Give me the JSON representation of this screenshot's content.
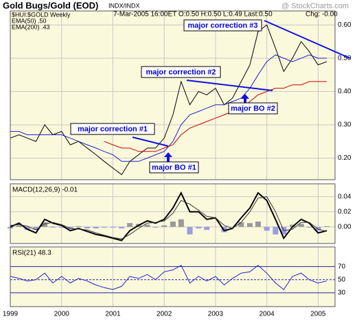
{
  "chart_data": [
    {
      "type": "line",
      "title": "Gold Bugs/Gold (EOD)",
      "exchange": "INDX/INDX",
      "quote": "7-Mar-2005 16:00ET O:0.50 H:0.50 L:0.49 Last:0.50",
      "change": "Chg: -0.00",
      "watermark": "@ StockCharts.com",
      "annotations": [
        "major correction #1",
        "major BO #1",
        "major correction #2",
        "major BO #2",
        "major correction #3"
      ],
      "x": [
        1999,
        1999.17,
        1999.33,
        1999.5,
        1999.67,
        1999.83,
        2000,
        2000.17,
        2000.33,
        2000.5,
        2000.67,
        2000.83,
        2001,
        2001.17,
        2001.33,
        2001.5,
        2001.67,
        2001.83,
        2002,
        2002.17,
        2002.33,
        2002.5,
        2002.67,
        2002.83,
        2003,
        2003.17,
        2003.33,
        2003.5,
        2003.67,
        2003.83,
        2004,
        2004.17,
        2004.33,
        2004.5,
        2004.67,
        2004.83,
        2005,
        2005.17
      ],
      "xlim": [
        1999,
        2005.33
      ],
      "ylim": [
        0.135,
        0.642
      ],
      "yticks": [
        {
          "value": 0.6,
          "label": "0.60"
        },
        {
          "value": 0.5,
          "label": "0.50"
        },
        {
          "value": 0.4,
          "label": "0.40"
        },
        {
          "value": 0.3,
          "label": "0.30"
        },
        {
          "value": 0.2,
          "label": "0.20"
        }
      ],
      "grid": true,
      "series": [
        {
          "name": "$HUI:$GOLD Weekly",
          "color": "#000000",
          "values": [
            0.26,
            0.27,
            0.26,
            0.25,
            0.3,
            0.27,
            0.28,
            0.24,
            0.25,
            0.23,
            0.21,
            0.19,
            0.17,
            0.15,
            0.19,
            0.21,
            0.23,
            0.23,
            0.26,
            0.33,
            0.43,
            0.36,
            0.4,
            0.39,
            0.41,
            0.36,
            0.38,
            0.43,
            0.48,
            0.58,
            0.6,
            0.53,
            0.46,
            0.5,
            0.55,
            0.52,
            0.48,
            0.49
          ]
        },
        {
          "name": "EMA(50) .50",
          "color": "#2020d0",
          "values": [
            0.28,
            0.28,
            0.27,
            0.27,
            0.27,
            0.27,
            0.27,
            0.26,
            0.25,
            0.24,
            0.23,
            0.22,
            0.21,
            0.19,
            0.19,
            0.19,
            0.2,
            0.21,
            0.22,
            0.25,
            0.3,
            0.33,
            0.34,
            0.35,
            0.36,
            0.36,
            0.37,
            0.38,
            0.41,
            0.45,
            0.49,
            0.51,
            0.5,
            0.49,
            0.5,
            0.51,
            0.5,
            0.5
          ]
        },
        {
          "name": "EMA(200) .43",
          "color": "#cc0000",
          "values": [
            null,
            null,
            null,
            null,
            null,
            null,
            null,
            null,
            null,
            null,
            null,
            0.25,
            0.24,
            0.23,
            0.23,
            0.22,
            0.22,
            0.22,
            0.23,
            0.24,
            0.27,
            0.29,
            0.3,
            0.31,
            0.32,
            0.33,
            0.34,
            0.35,
            0.37,
            0.39,
            0.4,
            0.41,
            0.41,
            0.42,
            0.42,
            0.43,
            0.43,
            0.43
          ]
        }
      ]
    },
    {
      "type": "line",
      "title": "MACD(12,26,9) -0.01",
      "ylim": [
        -0.022,
        0.057
      ],
      "yticks": [
        0.04,
        0.02,
        {
          "value": 0,
          "label": "0.00"
        }
      ],
      "grid": true,
      "series": [
        {
          "type": "bar",
          "color": "#999999",
          "values": [
            -0.002,
            0.002,
            -0.004,
            -0.004,
            0.006,
            -0.001,
            -0.001,
            -0.003,
            0.001,
            -0.002,
            -0.002,
            -0.001,
            -0.001,
            -0.002,
            0.005,
            0.004,
            0.003,
            -0.001,
            0.002,
            0.007,
            0.01,
            -0.01,
            -0.002,
            -0.004,
            0.0,
            -0.007,
            0.0,
            0.006,
            0.005,
            0.007,
            -0.005,
            -0.01,
            -0.01,
            0.003,
            0.004,
            -0.001,
            -0.005,
            0.001
          ]
        },
        {
          "color": "#000000",
          "values": [
            0.0,
            0.005,
            -0.003,
            -0.008,
            0.01,
            0.005,
            0.002,
            -0.005,
            -0.002,
            -0.006,
            -0.01,
            -0.012,
            -0.015,
            -0.018,
            -0.005,
            0.002,
            0.008,
            0.005,
            0.01,
            0.025,
            0.045,
            0.02,
            0.02,
            0.01,
            0.012,
            -0.005,
            -0.002,
            0.012,
            0.025,
            0.045,
            0.035,
            0.01,
            -0.015,
            0.0,
            0.01,
            0.005,
            -0.008,
            -0.005
          ]
        },
        {
          "color": "#333333",
          "values": [
            0.002,
            0.003,
            0.001,
            -0.004,
            0.004,
            0.006,
            0.003,
            -0.002,
            -0.003,
            -0.004,
            -0.008,
            -0.011,
            -0.014,
            -0.016,
            -0.01,
            -0.002,
            0.005,
            0.006,
            0.008,
            0.018,
            0.035,
            0.03,
            0.022,
            0.014,
            0.012,
            0.002,
            -0.002,
            0.006,
            0.02,
            0.038,
            0.04,
            0.02,
            -0.005,
            -0.003,
            0.006,
            0.006,
            -0.003,
            -0.006
          ]
        }
      ]
    },
    {
      "type": "line",
      "title": "RSI(21) 48.3",
      "ylim": [
        9,
        100
      ],
      "yticks": [
        70,
        50,
        30
      ],
      "xticks": [
        1999,
        2000,
        2001,
        2002,
        2003,
        2004,
        2005
      ],
      "series": [
        {
          "color": "#2020d0",
          "values": [
            55,
            52,
            48,
            50,
            60,
            45,
            55,
            45,
            52,
            48,
            42,
            38,
            35,
            40,
            55,
            52,
            58,
            50,
            62,
            65,
            72,
            45,
            55,
            48,
            55,
            42,
            52,
            60,
            62,
            72,
            60,
            45,
            35,
            55,
            60,
            50,
            45,
            48
          ]
        }
      ]
    }
  ]
}
